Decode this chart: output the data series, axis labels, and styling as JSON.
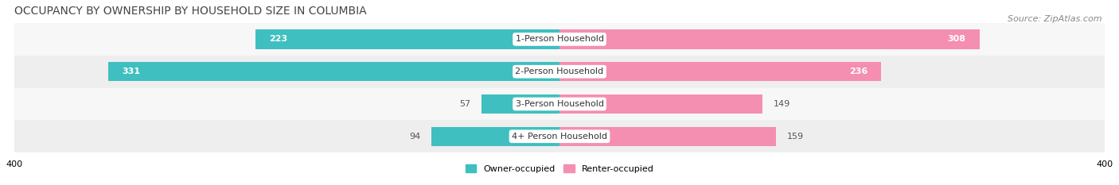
{
  "title": "OCCUPANCY BY OWNERSHIP BY HOUSEHOLD SIZE IN COLUMBIA",
  "source": "Source: ZipAtlas.com",
  "categories": [
    "1-Person Household",
    "2-Person Household",
    "3-Person Household",
    "4+ Person Household"
  ],
  "owner_values": [
    223,
    331,
    57,
    94
  ],
  "renter_values": [
    308,
    236,
    149,
    159
  ],
  "owner_color": "#3FBFBF",
  "renter_color": "#F48FB1",
  "row_bg_colors": [
    "#F7F7F7",
    "#EEEEEE"
  ],
  "xlim": 400,
  "title_fontsize": 10,
  "source_fontsize": 8,
  "label_fontsize": 8,
  "tick_fontsize": 8,
  "legend_fontsize": 8,
  "bar_height": 0.6,
  "background_color": "#FFFFFF",
  "owner_label": "Owner-occupied",
  "renter_label": "Renter-occupied"
}
